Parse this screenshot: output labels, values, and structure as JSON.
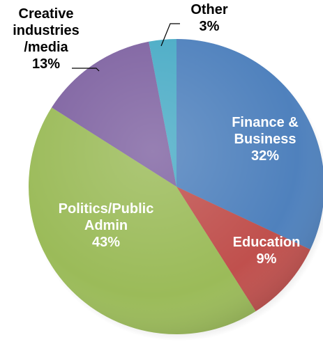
{
  "chart_data": {
    "type": "pie",
    "title": "",
    "slices": [
      {
        "category": "Finance & Business",
        "label_lines": [
          "Finance &",
          "Business"
        ],
        "value": 32,
        "value_label": "32%",
        "color": "#4F81BD",
        "label_color": "#FFFFFF"
      },
      {
        "category": "Education",
        "label_lines": [
          "Education"
        ],
        "value": 9,
        "value_label": "9%",
        "color": "#C0504D",
        "label_color": "#FFFFFF"
      },
      {
        "category": "Politics/Public Admin",
        "label_lines": [
          "Politics/Public",
          "Admin"
        ],
        "value": 43,
        "value_label": "43%",
        "color": "#9BBB59",
        "label_color": "#FFFFFF"
      },
      {
        "category": "Creative industries /media",
        "label_lines": [
          "Creative",
          "industries",
          "/media"
        ],
        "value": 13,
        "value_label": "13%",
        "color": "#8064A2",
        "label_color": "#000000"
      },
      {
        "category": "Other",
        "label_lines": [
          "Other"
        ],
        "value": 3,
        "value_label": "3%",
        "color": "#4BACC6",
        "label_color": "#000000"
      }
    ],
    "start_angle": "12 o'clock",
    "direction": "clockwise",
    "style": "3d-shaded"
  }
}
